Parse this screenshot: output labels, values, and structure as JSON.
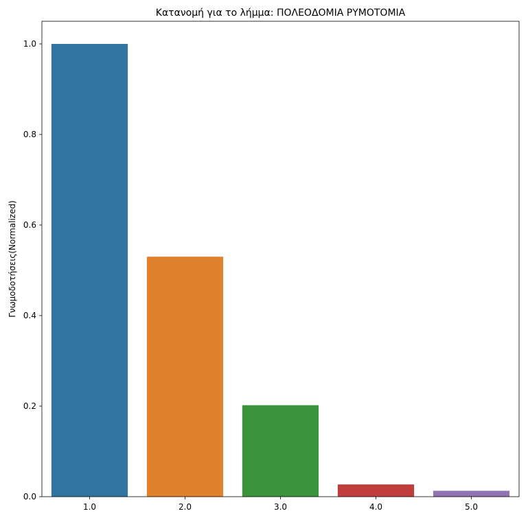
{
  "chart_data": {
    "type": "bar",
    "title": "Κατανομή για το λήμμα: ΠΟΛΕΟΔΟΜΙΑ ΡΥΜΟΤΟΜΙΑ",
    "xlabel": "",
    "ylabel": "Γνωμοδοτήσεις(Normalized)",
    "categories": [
      "1.0",
      "2.0",
      "3.0",
      "4.0",
      "5.0"
    ],
    "values": [
      1.0,
      0.53,
      0.202,
      0.027,
      0.013
    ],
    "colors": [
      "#3274a1",
      "#e1812c",
      "#3a923a",
      "#c03d3e",
      "#9372b2"
    ],
    "ylim": [
      0,
      1.05
    ],
    "yticks": [
      "0.0",
      "0.2",
      "0.4",
      "0.6",
      "0.8",
      "1.0"
    ],
    "grid": false,
    "legend": "none"
  }
}
